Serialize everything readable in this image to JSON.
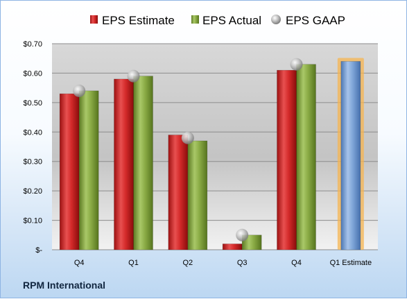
{
  "chart_data": {
    "type": "bar",
    "title": "",
    "xlabel": "",
    "ylabel": "",
    "categories": [
      "Q4",
      "Q1",
      "Q2",
      "Q3",
      "Q4",
      "Q1 Estimate"
    ],
    "ylim": [
      0,
      0.7
    ],
    "yticks": [
      0,
      0.1,
      0.2,
      0.3,
      0.4,
      0.5,
      0.6,
      0.7
    ],
    "ytick_labels": [
      "$-",
      "$0.10",
      "$0.20",
      "$0.30",
      "$0.40",
      "$0.50",
      "$0.60",
      "$0.70"
    ],
    "grid": true,
    "legend_position": "top",
    "legend": [
      "EPS Estimate",
      "EPS Actual",
      "EPS GAAP"
    ],
    "series": [
      {
        "name": "EPS Estimate",
        "type": "bar",
        "color": "#c0201f",
        "values": [
          0.53,
          0.58,
          0.39,
          0.02,
          0.61,
          null
        ]
      },
      {
        "name": "EPS Actual",
        "type": "bar",
        "color": "#7f9f3a",
        "values": [
          0.54,
          0.59,
          0.37,
          0.05,
          0.63,
          null
        ]
      },
      {
        "name": "EPS GAAP",
        "type": "marker",
        "color": "#b8b8b8",
        "values": [
          0.54,
          0.59,
          0.38,
          0.05,
          0.63,
          null
        ]
      },
      {
        "name": "",
        "type": "bar",
        "color": "#6f98cf",
        "highlight": "#f5b450",
        "values": [
          null,
          null,
          null,
          null,
          null,
          0.64
        ]
      }
    ]
  },
  "footer": {
    "company": "RPM International"
  }
}
